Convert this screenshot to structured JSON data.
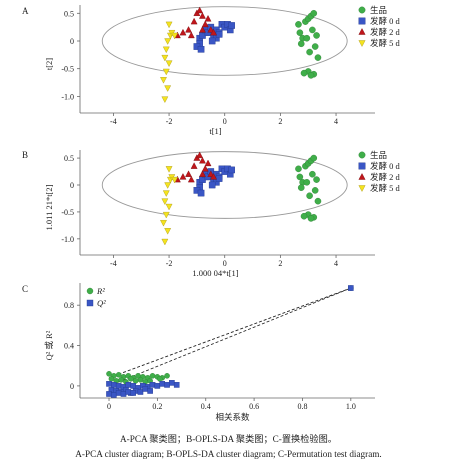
{
  "figure": {
    "caption_zh": "A-PCA 聚类图；B-OPLS-DA 聚类图；C-置换检验图。",
    "caption_en": "A-PCA cluster diagram; B-OPLS-DA cluster diagram; C-Permutation test diagram."
  },
  "legend": {
    "groups": [
      {
        "label": "生品",
        "shape": "circle",
        "color": "#3fae49"
      },
      {
        "label": "发酵 0 d",
        "shape": "square",
        "color": "#3a56c5"
      },
      {
        "label": "发酵 2 d",
        "shape": "triangle-up",
        "color": "#c0161b"
      },
      {
        "label": "发酵 5 d",
        "shape": "triangle-down",
        "color": "#f4e31e"
      }
    ],
    "perm": [
      {
        "label": "R²",
        "shape": "circle",
        "color": "#3fae49"
      },
      {
        "label": "Q²",
        "shape": "square",
        "color": "#3a56c5"
      }
    ]
  },
  "chart_data": [
    {
      "panel": "A",
      "type": "scatter",
      "xlabel": "t[1]",
      "ylabel": "t[2]",
      "xlim": [
        -5.2,
        5.4
      ],
      "ylim": [
        -1.3,
        0.65
      ],
      "xticks": [
        -4,
        -2,
        0,
        2,
        4
      ],
      "yticks": [
        0.5,
        0,
        -0.5,
        -1.0
      ],
      "yticklabels": [
        "0.5",
        "0",
        "-0.5",
        "-1.0"
      ],
      "ellipse": {
        "center": [
          0,
          0
        ],
        "rx": 4.4,
        "ry": 0.62
      },
      "series": [
        {
          "name": "生品",
          "x": [
            2.65,
            2.7,
            2.8,
            2.75,
            2.9,
            3.0,
            3.1,
            3.2,
            3.15,
            3.3,
            3.25,
            3.05,
            2.95,
            3.35,
            3.0,
            3.2,
            2.85,
            3.1
          ],
          "y": [
            0.3,
            0.15,
            0.05,
            -0.05,
            0.35,
            0.4,
            0.45,
            0.5,
            0.2,
            0.1,
            -0.1,
            -0.2,
            0.05,
            -0.3,
            -0.55,
            -0.6,
            -0.58,
            -0.62
          ]
        },
        {
          "name": "发酵 0 d",
          "x": [
            -0.9,
            -0.8,
            -0.7,
            -0.6,
            -0.5,
            -0.4,
            -0.3,
            -0.2,
            -0.1,
            0.0,
            0.1,
            0.2,
            0.25,
            -0.3,
            -0.45,
            -0.9,
            -1.0,
            -0.2,
            -0.85
          ],
          "y": [
            0.05,
            0.1,
            0.2,
            0.15,
            0.25,
            0.1,
            0.2,
            0.15,
            0.3,
            0.25,
            0.3,
            0.2,
            0.28,
            0.05,
            0.0,
            -0.05,
            -0.1,
            0.12,
            -0.15
          ]
        },
        {
          "name": "发酵 2 d",
          "x": [
            -1.7,
            -1.5,
            -1.3,
            -1.1,
            -1.0,
            -0.9,
            -0.8,
            -0.7,
            -0.6,
            -0.5,
            -0.4,
            -1.2,
            -0.8
          ],
          "y": [
            0.1,
            0.15,
            0.2,
            0.35,
            0.5,
            0.55,
            0.45,
            0.3,
            0.4,
            0.2,
            0.15,
            0.1,
            0.2
          ]
        },
        {
          "name": "发酵 5 d",
          "x": [
            -2.0,
            -1.95,
            -2.05,
            -2.1,
            -2.15,
            -2.0,
            -2.1,
            -2.2,
            -2.05,
            -2.15,
            -1.9,
            -1.8
          ],
          "y": [
            0.3,
            0.1,
            0.0,
            -0.15,
            -0.3,
            -0.4,
            -0.55,
            -0.7,
            -0.85,
            -1.05,
            0.15,
            0.1
          ]
        }
      ]
    },
    {
      "panel": "B",
      "type": "scatter",
      "xlabel": "1.000 04*t[1]",
      "ylabel": "1.011 21*t[2]",
      "xlim": [
        -5.2,
        5.4
      ],
      "ylim": [
        -1.3,
        0.65
      ],
      "xticks": [
        -4,
        -2,
        0,
        2,
        4
      ],
      "yticks": [
        0.5,
        0,
        -0.5,
        -1.0
      ],
      "yticklabels": [
        "0.5",
        "0",
        "-0.5",
        "-1.0"
      ],
      "ellipse": {
        "center": [
          0,
          0
        ],
        "rx": 4.4,
        "ry": 0.62
      },
      "series": [
        {
          "name": "生品",
          "x": [
            2.65,
            2.7,
            2.8,
            2.75,
            2.9,
            3.0,
            3.1,
            3.2,
            3.15,
            3.3,
            3.25,
            3.05,
            2.95,
            3.35,
            3.0,
            3.2,
            2.85,
            3.1
          ],
          "y": [
            0.3,
            0.15,
            0.05,
            -0.05,
            0.35,
            0.4,
            0.45,
            0.5,
            0.2,
            0.1,
            -0.1,
            -0.2,
            0.05,
            -0.3,
            -0.55,
            -0.6,
            -0.58,
            -0.62
          ]
        },
        {
          "name": "发酵 0 d",
          "x": [
            -0.9,
            -0.8,
            -0.7,
            -0.6,
            -0.5,
            -0.4,
            -0.3,
            -0.2,
            -0.1,
            0.0,
            0.1,
            0.2,
            0.25,
            -0.3,
            -0.45,
            -0.9,
            -1.0,
            -0.2,
            -0.85
          ],
          "y": [
            0.05,
            0.1,
            0.2,
            0.15,
            0.25,
            0.1,
            0.2,
            0.15,
            0.3,
            0.25,
            0.3,
            0.2,
            0.28,
            0.05,
            0.0,
            -0.05,
            -0.1,
            0.12,
            -0.15
          ]
        },
        {
          "name": "发酵 2 d",
          "x": [
            -1.7,
            -1.5,
            -1.3,
            -1.1,
            -1.0,
            -0.9,
            -0.8,
            -0.7,
            -0.6,
            -0.5,
            -0.4,
            -1.2,
            -0.8
          ],
          "y": [
            0.1,
            0.15,
            0.2,
            0.35,
            0.5,
            0.55,
            0.45,
            0.3,
            0.4,
            0.2,
            0.15,
            0.1,
            0.2
          ]
        },
        {
          "name": "发酵 5 d",
          "x": [
            -2.0,
            -1.95,
            -2.05,
            -2.1,
            -2.15,
            -2.0,
            -2.1,
            -2.2,
            -2.05,
            -2.15,
            -1.9,
            -1.8
          ],
          "y": [
            0.3,
            0.1,
            0.0,
            -0.15,
            -0.3,
            -0.4,
            -0.55,
            -0.7,
            -0.85,
            -1.05,
            0.15,
            0.1
          ]
        }
      ]
    },
    {
      "panel": "C",
      "type": "scatter",
      "xlabel": "相关系数",
      "ylabel": "Q² 或 R²",
      "xlim": [
        -0.12,
        1.1
      ],
      "ylim": [
        -0.12,
        1.02
      ],
      "xticks": [
        0,
        0.2,
        0.4,
        0.6,
        0.8,
        1.0
      ],
      "xticklabels": [
        "0",
        "0.2",
        "0.4",
        "0.6",
        "0.8",
        "1.0"
      ],
      "yticks": [
        0,
        0.4,
        0.8
      ],
      "yticklabels": [
        "0",
        "0.4",
        "0.8"
      ],
      "series": [
        {
          "name": "R²",
          "x": [
            0.0,
            0.02,
            0.04,
            0.06,
            0.08,
            0.1,
            0.12,
            0.14,
            0.16,
            0.18,
            0.2,
            0.22,
            0.24,
            0.01,
            0.05,
            0.09,
            0.13,
            0.17,
            0.21,
            0.03,
            0.07,
            0.11,
            0.15,
            1.0
          ],
          "y": [
            0.12,
            0.1,
            0.11,
            0.09,
            0.1,
            0.08,
            0.1,
            0.09,
            0.08,
            0.1,
            0.09,
            0.08,
            0.1,
            0.07,
            0.06,
            0.07,
            0.06,
            0.05,
            0.07,
            0.05,
            0.04,
            0.05,
            0.04,
            0.97
          ]
        },
        {
          "name": "Q²",
          "x": [
            0.0,
            0.02,
            0.04,
            0.06,
            0.08,
            0.1,
            0.12,
            0.14,
            0.16,
            0.18,
            0.2,
            0.22,
            0.24,
            0.26,
            0.28,
            0.01,
            0.03,
            0.05,
            0.07,
            0.09,
            0.11,
            0.13,
            0.15,
            0.17,
            0.0,
            0.02,
            0.04,
            0.06,
            0.08,
            0.1,
            1.0
          ],
          "y": [
            0.02,
            0.01,
            0.0,
            -0.01,
            0.01,
            0.0,
            -0.02,
            0.0,
            -0.01,
            0.01,
            0.0,
            0.02,
            0.01,
            0.03,
            0.01,
            -0.04,
            -0.05,
            -0.06,
            -0.04,
            -0.07,
            -0.05,
            -0.06,
            -0.03,
            -0.05,
            -0.08,
            -0.09,
            -0.07,
            -0.08,
            -0.06,
            -0.07,
            0.97
          ]
        }
      ],
      "regression_lines": [
        {
          "series": "R²",
          "from": [
            0.0,
            0.08
          ],
          "to": [
            1.0,
            0.97
          ]
        },
        {
          "series": "Q²",
          "from": [
            0.0,
            0.0
          ],
          "to": [
            1.0,
            0.97
          ]
        }
      ]
    }
  ]
}
